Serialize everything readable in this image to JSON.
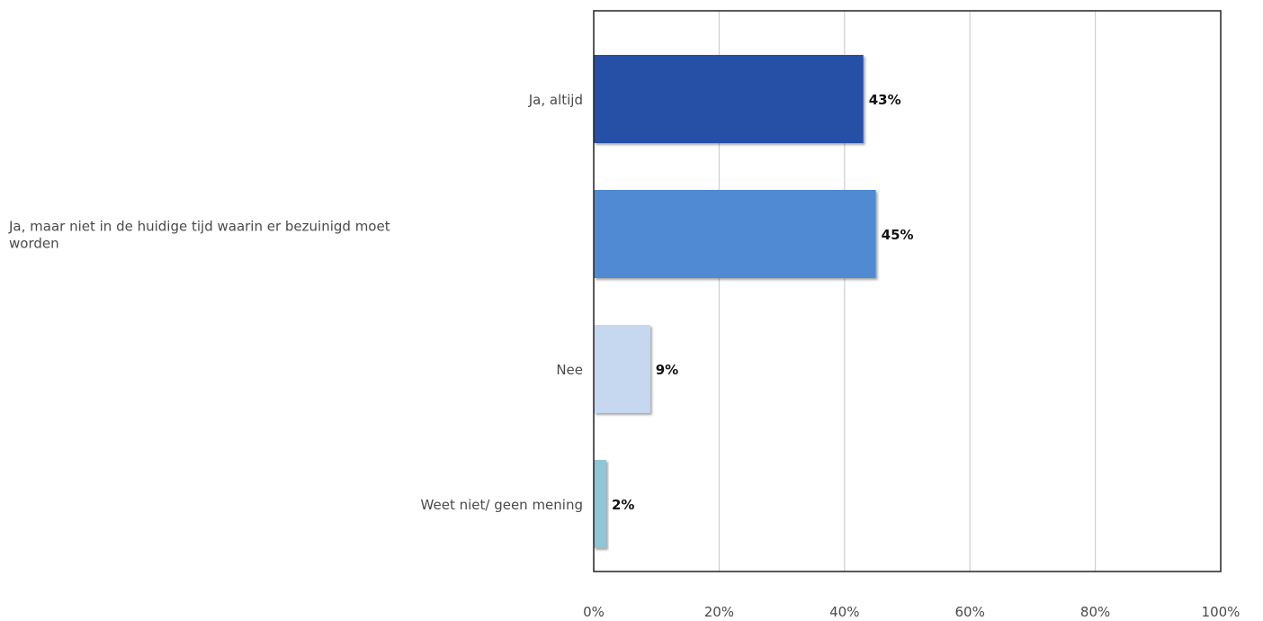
{
  "chart_data": {
    "type": "bar",
    "orientation": "horizontal",
    "categories": [
      [
        "Ja, altijd"
      ],
      [
        "Ja, maar niet in de huidige tijd waarin er bezuinigd moet",
        "worden"
      ],
      [
        "Nee"
      ],
      [
        "Weet niet/ geen mening"
      ]
    ],
    "values": [
      43,
      45,
      9,
      2
    ],
    "data_labels": [
      "43%",
      "45%",
      "9%",
      "2%"
    ],
    "colors": [
      "#2650a6",
      "#4f8ad3",
      "#c6d8f0",
      "#8ec6d6"
    ],
    "xlim": [
      0,
      100
    ],
    "xticks": [
      0,
      20,
      40,
      60,
      80,
      100
    ],
    "xtick_labels": [
      "0%",
      "20%",
      "40%",
      "60%",
      "80%",
      "100%"
    ],
    "grid": true,
    "legend": "none",
    "title": "",
    "xlabel": "",
    "ylabel": ""
  }
}
